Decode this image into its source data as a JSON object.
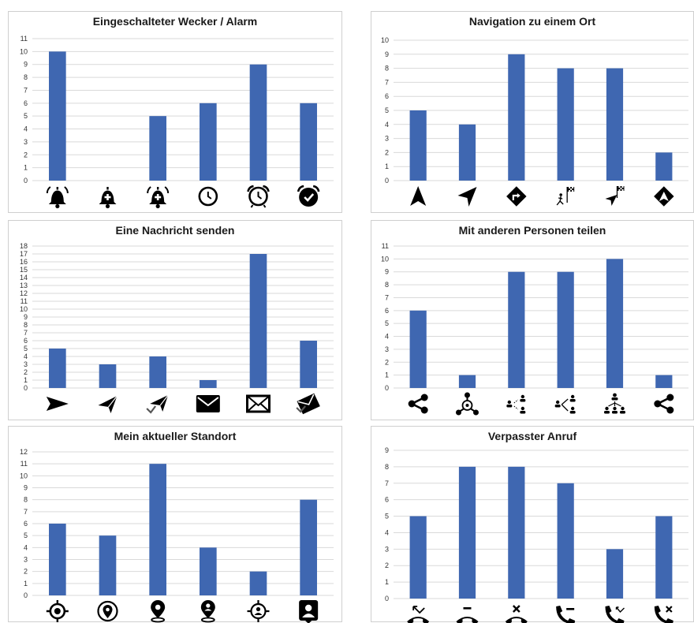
{
  "colors": {
    "bar": "#3f67b1",
    "grid": "#d9d9d9",
    "icon": "#000000"
  },
  "chart_data": [
    {
      "type": "bar",
      "title": "Eingeschalteter Wecker / Alarm",
      "categories": [
        "alarm-bell-ringing-icon",
        "alarm-bell-plus-icon",
        "alarm-bell-plus-ringing-icon",
        "alarm-clock-icon",
        "alarm-clock-bells-icon",
        "alarm-clock-check-icon"
      ],
      "values": [
        10,
        0,
        5,
        6,
        9,
        6
      ],
      "ylim": [
        0,
        11
      ],
      "yticks": [
        "0",
        "1",
        "2",
        "3",
        "4",
        "5",
        "6",
        "7",
        "8",
        "9",
        "10",
        "11"
      ],
      "grid": true
    },
    {
      "type": "bar",
      "title": "Navigation zu einem Ort",
      "categories": [
        "navigation-arrow-up-icon",
        "navigation-arrow-icon",
        "directions-sign-icon",
        "runner-flag-icon",
        "arrow-flag-icon",
        "navigation-diamond-icon"
      ],
      "values": [
        5,
        4,
        9,
        8,
        8,
        2
      ],
      "ylim": [
        0,
        10
      ],
      "yticks": [
        "0",
        "1",
        "2",
        "3",
        "4",
        "5",
        "6",
        "7",
        "8",
        "9",
        "10"
      ],
      "grid": true
    },
    {
      "type": "bar",
      "title": "Eine Nachricht senden",
      "categories": [
        "send-icon",
        "paper-plane-icon",
        "paper-plane-check-icon",
        "mail-filled-icon",
        "mail-outline-icon",
        "mail-send-check-icon"
      ],
      "values": [
        5,
        3,
        4,
        1,
        17,
        6
      ],
      "ylim": [
        0,
        18
      ],
      "yticks": [
        "0",
        "1",
        "2",
        "3",
        "4",
        "5",
        "6",
        "7",
        "8",
        "9",
        "10",
        "11",
        "12",
        "13",
        "14",
        "15",
        "16",
        "17",
        "18"
      ],
      "grid": true
    },
    {
      "type": "bar",
      "title": "Mit anderen Personen teilen",
      "categories": [
        "share-icon",
        "share-circle-icon",
        "share-people-icon",
        "share-people-branch-icon",
        "share-people-tree-icon",
        "share-alt-icon"
      ],
      "values": [
        6,
        1,
        9,
        9,
        10,
        1
      ],
      "ylim": [
        0,
        11
      ],
      "yticks": [
        "0",
        "1",
        "2",
        "3",
        "4",
        "5",
        "6",
        "7",
        "8",
        "9",
        "10",
        "11"
      ],
      "grid": true
    },
    {
      "type": "bar",
      "title": "Mein aktueller Standort",
      "categories": [
        "location-target-icon",
        "location-pin-outline-icon",
        "location-pin-filled-icon",
        "location-person-pin-icon",
        "location-person-target-icon",
        "location-person-card-icon"
      ],
      "values": [
        6,
        5,
        11,
        4,
        2,
        8
      ],
      "ylim": [
        0,
        12
      ],
      "yticks": [
        "0",
        "1",
        "2",
        "3",
        "4",
        "5",
        "6",
        "7",
        "8",
        "9",
        "10",
        "11",
        "12"
      ],
      "grid": true
    },
    {
      "type": "bar",
      "title": "Verpasster Anruf",
      "categories": [
        "phone-missed-arrow-icon",
        "phone-minus-icon",
        "phone-x-icon",
        "phone-call-minus-icon",
        "phone-call-missed-icon",
        "phone-call-x-icon"
      ],
      "values": [
        5,
        8,
        8,
        7,
        3,
        5
      ],
      "ylim": [
        0,
        9
      ],
      "yticks": [
        "0",
        "1",
        "2",
        "3",
        "4",
        "5",
        "6",
        "7",
        "8",
        "9"
      ],
      "grid": true
    }
  ]
}
